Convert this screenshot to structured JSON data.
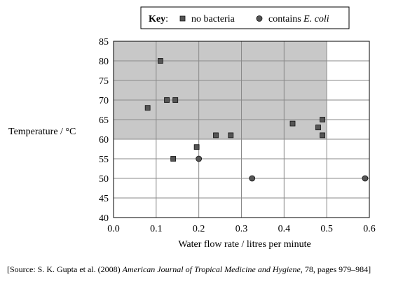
{
  "chart_data": {
    "type": "scatter",
    "xlabel": "Water flow rate / litres per minute",
    "ylabel": "Temperature / °C",
    "xlim": [
      0.0,
      0.6
    ],
    "ylim": [
      40,
      85
    ],
    "x_ticks": [
      "0.0",
      "0.1",
      "0.2",
      "0.3",
      "0.4",
      "0.5",
      "0.6"
    ],
    "y_ticks": [
      "40",
      "45",
      "50",
      "55",
      "60",
      "65",
      "70",
      "75",
      "80",
      "85"
    ],
    "grid": true,
    "legend_position": "top-center",
    "key": {
      "title": "Key",
      "separator": ":",
      "no_bacteria_label": "no bacteria",
      "ecoli_prefix": "contains ",
      "ecoli_name": "E. coli"
    },
    "shaded_region": {
      "x": [
        0.0,
        0.5
      ],
      "y": [
        60,
        85
      ],
      "color": "#c8c8c8"
    },
    "series": [
      {
        "name": "no bacteria",
        "marker": "square",
        "color": "#555555",
        "points": [
          {
            "x": 0.08,
            "y": 68
          },
          {
            "x": 0.11,
            "y": 80
          },
          {
            "x": 0.125,
            "y": 70
          },
          {
            "x": 0.145,
            "y": 70
          },
          {
            "x": 0.14,
            "y": 55
          },
          {
            "x": 0.195,
            "y": 58
          },
          {
            "x": 0.24,
            "y": 61
          },
          {
            "x": 0.275,
            "y": 61
          },
          {
            "x": 0.42,
            "y": 64
          },
          {
            "x": 0.48,
            "y": 63
          },
          {
            "x": 0.49,
            "y": 65
          },
          {
            "x": 0.49,
            "y": 61
          }
        ]
      },
      {
        "name": "contains E. coli",
        "marker": "circle",
        "color": "#555555",
        "points": [
          {
            "x": 0.2,
            "y": 55
          },
          {
            "x": 0.325,
            "y": 50
          },
          {
            "x": 0.59,
            "y": 50
          }
        ]
      }
    ]
  },
  "source": {
    "prefix": "[Source: S. K. Gupta et al. (2008) ",
    "journal": "American Journal of Tropical Medicine and Hygiene",
    "suffix": ", 78, pages 979–984]"
  }
}
